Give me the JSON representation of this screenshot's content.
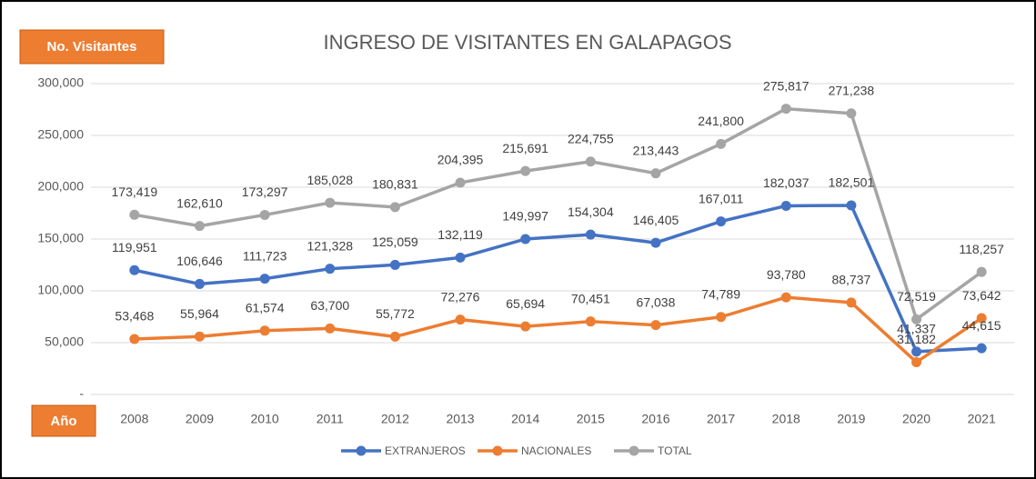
{
  "chart_data": {
    "type": "line",
    "title": "INGRESO DE VISITANTES EN GALAPAGOS",
    "y_label": "No. Visitantes",
    "x_label": "Año",
    "categories": [
      "2008",
      "2009",
      "2010",
      "2011",
      "2012",
      "2013",
      "2014",
      "2015",
      "2016",
      "2017",
      "2018",
      "2019",
      "2020",
      "2021"
    ],
    "series": [
      {
        "name": "EXTRANJEROS",
        "color": "#4472c4",
        "values": [
          119951,
          106646,
          111723,
          121328,
          125059,
          132119,
          149997,
          154304,
          146405,
          167011,
          182037,
          182501,
          41337,
          44615
        ],
        "value_labels": [
          "119,951",
          "106,646",
          "111,723",
          "121,328",
          "125,059",
          "132,119",
          "149,997",
          "154,304",
          "146,405",
          "167,011",
          "182,037",
          "182,501",
          "41,337",
          "44,615"
        ]
      },
      {
        "name": "NACIONALES",
        "color": "#ed7d31",
        "values": [
          53468,
          55964,
          61574,
          63700,
          55772,
          72276,
          65694,
          70451,
          67038,
          74789,
          93780,
          88737,
          31182,
          73642
        ],
        "value_labels": [
          "53,468",
          "55,964",
          "61,574",
          "63,700",
          "55,772",
          "72,276",
          "65,694",
          "70,451",
          "67,038",
          "74,789",
          "93,780",
          "88,737",
          "31,182",
          "73,642"
        ]
      },
      {
        "name": "TOTAL",
        "color": "#a5a5a5",
        "values": [
          173419,
          162610,
          173297,
          185028,
          180831,
          204395,
          215691,
          224755,
          213443,
          241800,
          275817,
          271238,
          72519,
          118257
        ],
        "value_labels": [
          "173,419",
          "162,610",
          "173,297",
          "185,028",
          "180,831",
          "204,395",
          "215,691",
          "224,755",
          "213,443",
          "241,800",
          "275,817",
          "271,238",
          "72,519",
          "118,257"
        ]
      }
    ],
    "ylim": [
      0,
      300000
    ],
    "yticks": [
      {
        "value": 0,
        "label": "-"
      },
      {
        "value": 50000,
        "label": "50,000"
      },
      {
        "value": 100000,
        "label": "100,000"
      },
      {
        "value": 150000,
        "label": "150,000"
      },
      {
        "value": 200000,
        "label": "200,000"
      },
      {
        "value": 250000,
        "label": "250,000"
      },
      {
        "value": 300000,
        "label": "300,000"
      }
    ],
    "grid": true,
    "legend": "bottom"
  }
}
